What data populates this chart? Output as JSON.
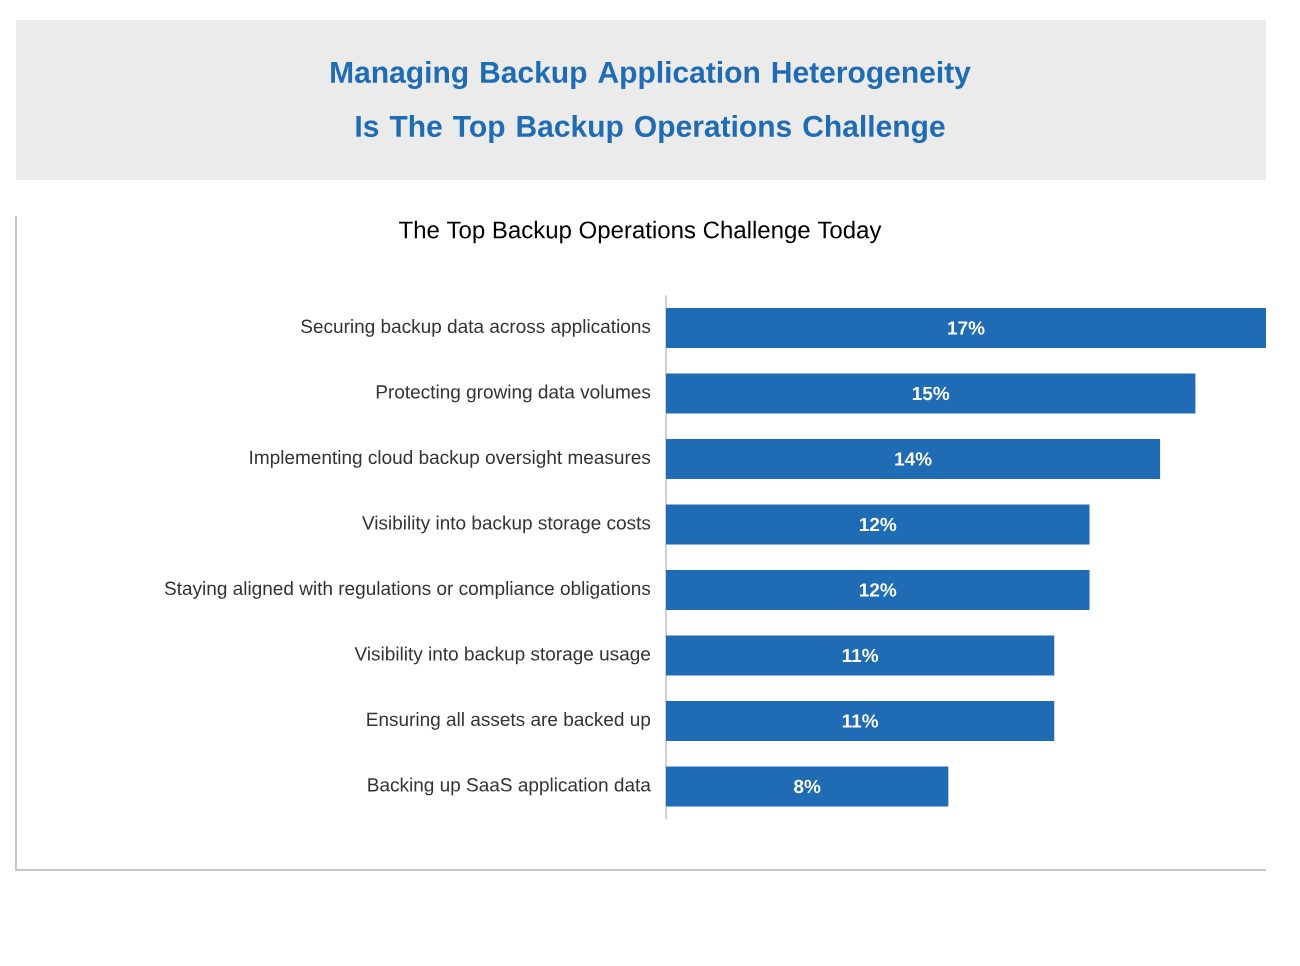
{
  "chart_data": {
    "type": "bar",
    "orientation": "horizontal",
    "title": "Managing Backup Application Heterogeneity Is The Top Backup Operations Challenge",
    "subtitle": "The Top Backup Operations Challenge Today",
    "categories": [
      "Securing backup data across applications",
      "Protecting growing data volumes",
      "Implementing cloud backup oversight measures",
      "Visibility into backup storage costs",
      "Staying aligned with regulations or compliance obligations",
      "Visibility into backup storage usage",
      "Ensuring all assets are backed up",
      "Backing up SaaS application data"
    ],
    "values": [
      17,
      15,
      14,
      12,
      12,
      11,
      11,
      8
    ],
    "value_labels": [
      "17%",
      "15%",
      "14%",
      "12%",
      "12%",
      "11%",
      "11%",
      "8%"
    ],
    "color": "#1f6cb5"
  }
}
